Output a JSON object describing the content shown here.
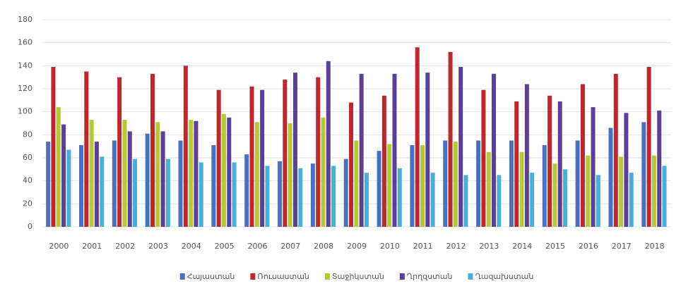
{
  "chart_data": {
    "type": "bar",
    "categories": [
      "2000",
      "2001",
      "2002",
      "2003",
      "2004",
      "2005",
      "2006",
      "2007",
      "2008",
      "2009",
      "2010",
      "2011",
      "2012",
      "2013",
      "2014",
      "2015",
      "2016",
      "2017",
      "2018"
    ],
    "series": [
      {
        "name": "Հայաստան",
        "color": "#4472c4",
        "values": [
          74,
          71,
          75,
          81,
          75,
          71,
          63,
          57,
          55,
          59,
          66,
          71,
          75,
          75,
          75,
          71,
          75,
          86,
          91
        ]
      },
      {
        "name": "Ռուսաստան",
        "color": "#c0262d",
        "values": [
          139,
          135,
          130,
          133,
          140,
          119,
          122,
          128,
          130,
          108,
          114,
          156,
          152,
          119,
          109,
          114,
          124,
          133,
          139
        ]
      },
      {
        "name": "Տաջիկստան",
        "color": "#b5c934",
        "values": [
          104,
          93,
          93,
          91,
          93,
          98,
          91,
          90,
          95,
          75,
          72,
          71,
          74,
          65,
          65,
          55,
          62,
          61,
          62
        ]
      },
      {
        "name": "Ղրղզստան",
        "color": "#5b3f98",
        "values": [
          89,
          74,
          83,
          83,
          92,
          95,
          119,
          134,
          144,
          133,
          133,
          134,
          139,
          133,
          124,
          109,
          104,
          99,
          101
        ]
      },
      {
        "name": "Ղազախստան",
        "color": "#4aaed8",
        "values": [
          67,
          61,
          59,
          59,
          56,
          56,
          53,
          51,
          53,
          47,
          51,
          47,
          45,
          45,
          47,
          50,
          45,
          47,
          53
        ]
      }
    ],
    "ylim": [
      0,
      180
    ],
    "yticks": [
      0,
      20,
      40,
      60,
      80,
      100,
      120,
      140,
      160,
      180
    ],
    "grid": true,
    "legend": "bottom"
  }
}
